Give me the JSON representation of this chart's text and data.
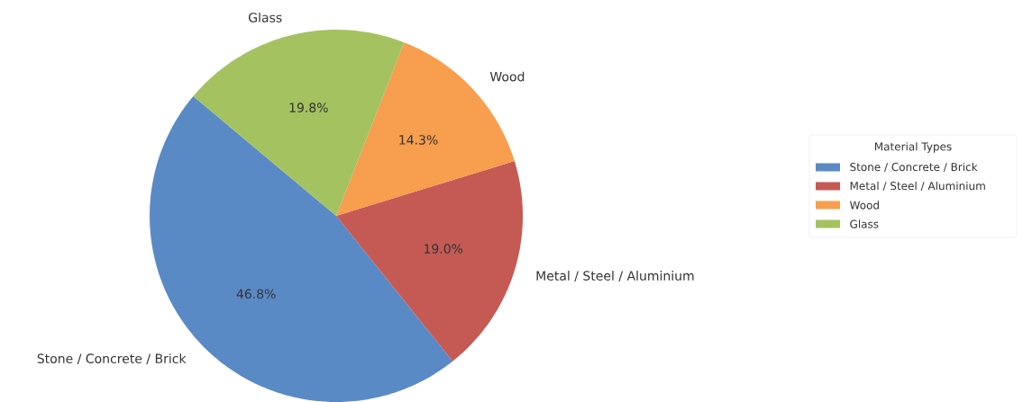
{
  "chart_data": {
    "type": "pie",
    "categories": [
      "Stone / Concrete / Brick",
      "Metal / Steel / Aluminium",
      "Wood",
      "Glass"
    ],
    "values": [
      46.8,
      19.0,
      14.3,
      19.8
    ],
    "colors": [
      "#5a8ac6",
      "#c55a55",
      "#f79e4f",
      "#a5c261"
    ],
    "value_labels": [
      "46.8%",
      "19.0%",
      "14.3%",
      "19.8%"
    ],
    "legend": "right",
    "legend_title": "Material Types"
  }
}
